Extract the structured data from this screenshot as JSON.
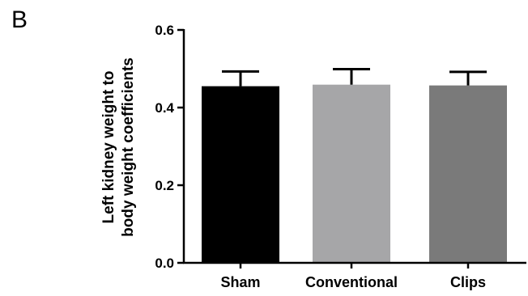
{
  "panel_label": "B",
  "chart_data": {
    "type": "bar",
    "categories": [
      "Sham",
      "Conventional",
      "Clips"
    ],
    "values": [
      0.455,
      0.459,
      0.457
    ],
    "errors": [
      0.038,
      0.04,
      0.035
    ],
    "colors": [
      "#000000",
      "#a6a6a8",
      "#7a7a7a"
    ],
    "ylabel_lines": [
      "Left kidney weight to",
      "body weight coefficients"
    ],
    "ylim": [
      0,
      0.6
    ],
    "yticks": [
      0.0,
      0.2,
      0.4,
      0.6
    ],
    "ytick_labels": [
      "0.0",
      "0.2",
      "0.4",
      "0.6"
    ]
  }
}
